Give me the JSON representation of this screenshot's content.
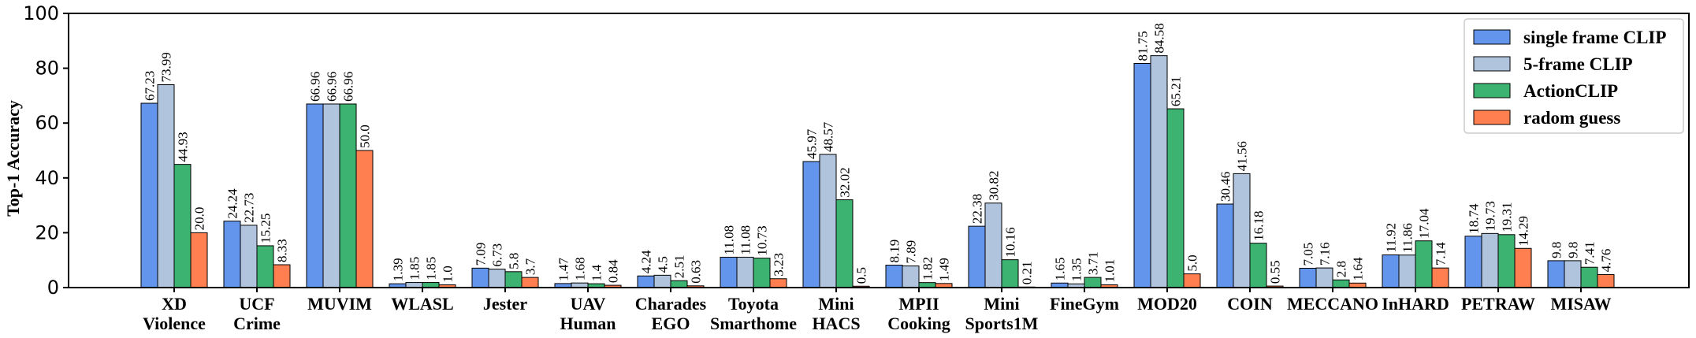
{
  "chart_data": {
    "type": "bar",
    "title": "",
    "xlabel": "",
    "ylabel": "Top-1 Accuracy",
    "ylim": [
      0,
      100
    ],
    "yticks": [
      "0",
      "20",
      "40",
      "60",
      "80",
      "100"
    ],
    "legend_position": "top-right",
    "categories": [
      "XD\nViolence",
      "UCF\nCrime",
      "MUVIM",
      "WLASL",
      "Jester",
      "UAV\nHuman",
      "Charades\nEGO",
      "Toyota\nSmarthome",
      "Mini\nHACS",
      "MPII\nCooking",
      "Mini\nSports1M",
      "FineGym",
      "MOD20",
      "COIN",
      "MECCANO",
      "InHARD",
      "PETRAW",
      "MISAW"
    ],
    "series": [
      {
        "name": "single frame CLIP",
        "color": "#6495ed",
        "values": [
          67.23,
          24.24,
          66.96,
          1.39,
          7.09,
          1.47,
          4.24,
          11.08,
          45.97,
          8.19,
          22.38,
          1.65,
          81.75,
          30.46,
          7.05,
          11.92,
          18.74,
          9.8
        ],
        "labels": [
          "67.23",
          "24.24",
          "66.96",
          "1.39",
          "7.09",
          "1.47",
          "4.24",
          "11.08",
          "45.97",
          "8.19",
          "22.38",
          "1.65",
          "81.75",
          "30.46",
          "7.05",
          "11.92",
          "18.74",
          "9.8"
        ]
      },
      {
        "name": "5-frame CLIP",
        "color": "#b0c4de",
        "values": [
          73.99,
          22.73,
          66.96,
          1.85,
          6.73,
          1.68,
          4.5,
          11.08,
          48.57,
          7.89,
          30.82,
          1.35,
          84.58,
          41.56,
          7.16,
          11.86,
          19.73,
          9.8
        ],
        "labels": [
          "73.99",
          "22.73",
          "66.96",
          "1.85",
          "6.73",
          "1.68",
          "4.5",
          "11.08",
          "48.57",
          "7.89",
          "30.82",
          "1.35",
          "84.58",
          "41.56",
          "7.16",
          "11.86",
          "19.73",
          "9.8"
        ]
      },
      {
        "name": "ActionCLIP",
        "color": "#3cb371",
        "values": [
          44.93,
          15.25,
          66.96,
          1.85,
          5.8,
          1.4,
          2.51,
          10.73,
          32.02,
          1.82,
          10.16,
          3.71,
          65.21,
          16.18,
          2.8,
          17.04,
          19.31,
          7.41
        ],
        "labels": [
          "44.93",
          "15.25",
          "66.96",
          "1.85",
          "5.8",
          "1.4",
          "2.51",
          "10.73",
          "32.02",
          "1.82",
          "10.16",
          "3.71",
          "65.21",
          "16.18",
          "2.8",
          "17.04",
          "19.31",
          "7.41"
        ]
      },
      {
        "name": "radom guess",
        "color": "#ff7f50",
        "values": [
          20.0,
          8.33,
          50.0,
          1.0,
          3.7,
          0.84,
          0.63,
          3.23,
          0.5,
          1.49,
          0.21,
          1.01,
          5.0,
          0.55,
          1.64,
          7.14,
          14.29,
          4.76
        ],
        "labels": [
          "20.0",
          "8.33",
          "50.0",
          "1.0",
          "3.7",
          "0.84",
          "0.63",
          "3.23",
          "0.5",
          "1.49",
          "0.21",
          "1.01",
          "5.0",
          "0.55",
          "1.64",
          "7.14",
          "14.29",
          "4.76"
        ]
      }
    ]
  }
}
